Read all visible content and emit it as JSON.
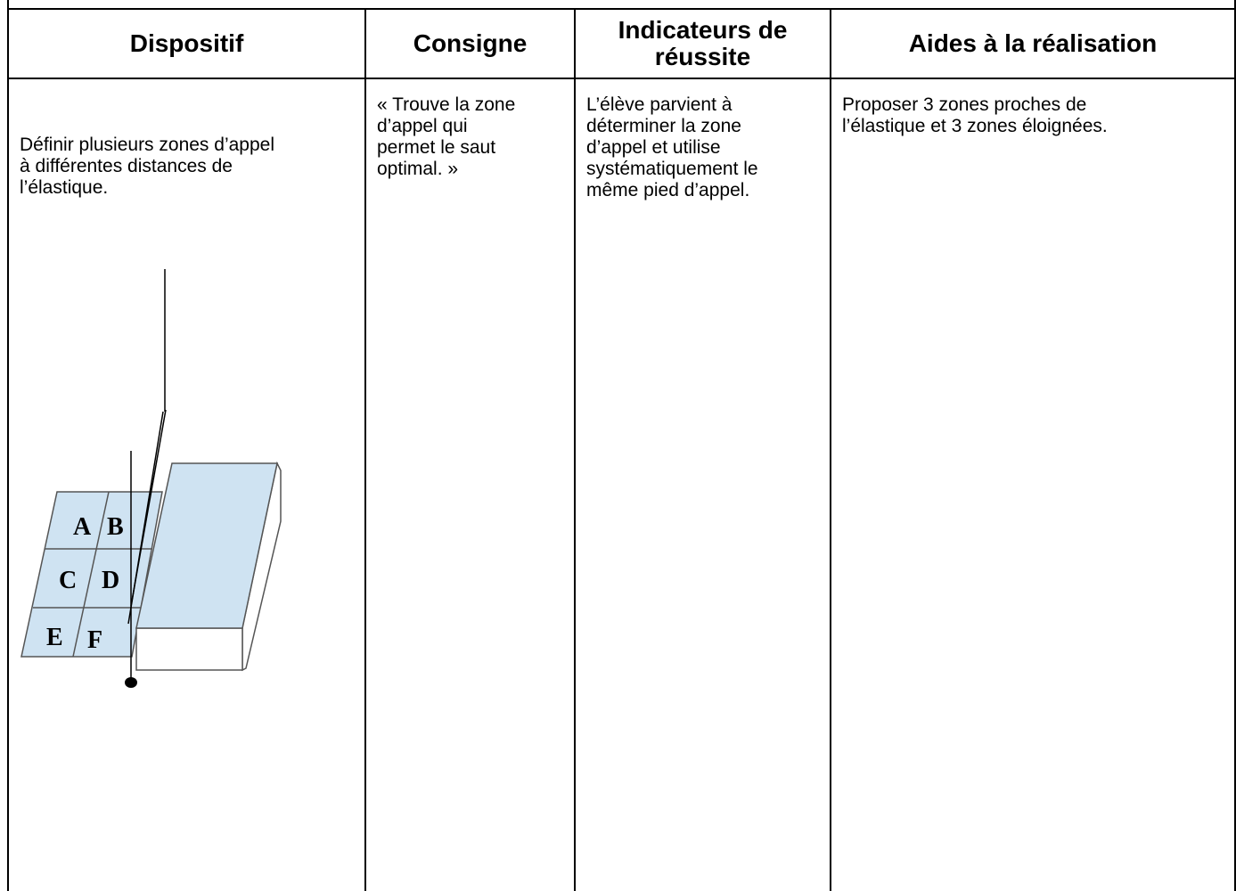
{
  "table": {
    "headers": [
      [
        "Dispositif"
      ],
      [
        "Consigne"
      ],
      [
        "Indicateurs de",
        "réussite"
      ],
      [
        "Aides à la réalisation"
      ]
    ],
    "rows": [
      [
        [
          "Définir plusieurs zones d’appel",
          "à différentes distances de",
          "l’élastique."
        ],
        [
          "« Trouve la zone",
          "d’appel qui",
          "permet le saut",
          "optimal. »"
        ],
        [
          "L’élève parvient à",
          "déterminer la zone",
          "d’appel et utilise",
          "systématiquement le",
          "même pied d’appel."
        ],
        [
          "Proposer 3 zones proches de",
          "l’élastique et 3 zones éloignées."
        ]
      ]
    ]
  },
  "diagram": {
    "labels": [
      "A",
      "B",
      "C",
      "D",
      "E",
      "F"
    ]
  }
}
